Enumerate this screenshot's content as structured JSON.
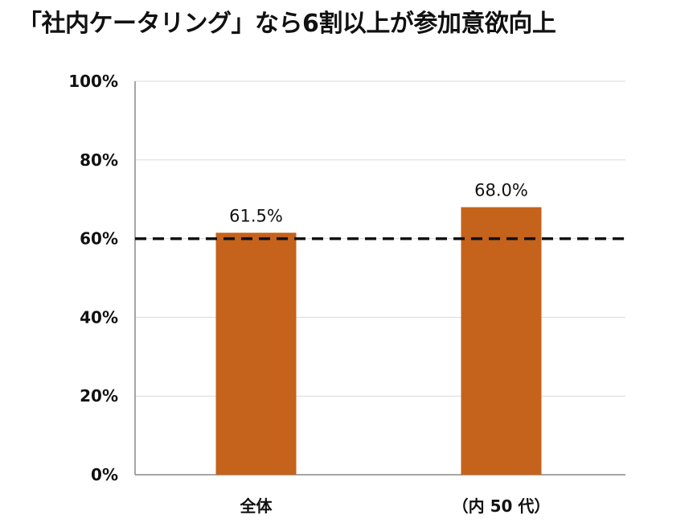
{
  "chart_data": {
    "type": "bar",
    "title": "「社内ケータリング」なら6割以上が参加意欲向上",
    "xlabel": "",
    "ylabel": "",
    "categories": [
      "全体",
      "（内 50 代）"
    ],
    "values": [
      61.5,
      68.0
    ],
    "data_labels": [
      "61.5%",
      "68.0%"
    ],
    "ylim": [
      0,
      100
    ],
    "yticks": [
      0,
      20,
      40,
      60,
      80,
      100
    ],
    "ytick_labels": [
      "0%",
      "20%",
      "40%",
      "60%",
      "80%",
      "100%"
    ],
    "grid": true,
    "reference_line": {
      "value": 60,
      "style": "dashed",
      "color": "#111111"
    },
    "colors": {
      "bar": "#C5621B",
      "grid": "#d9d9d9",
      "axis": "#888888"
    }
  }
}
